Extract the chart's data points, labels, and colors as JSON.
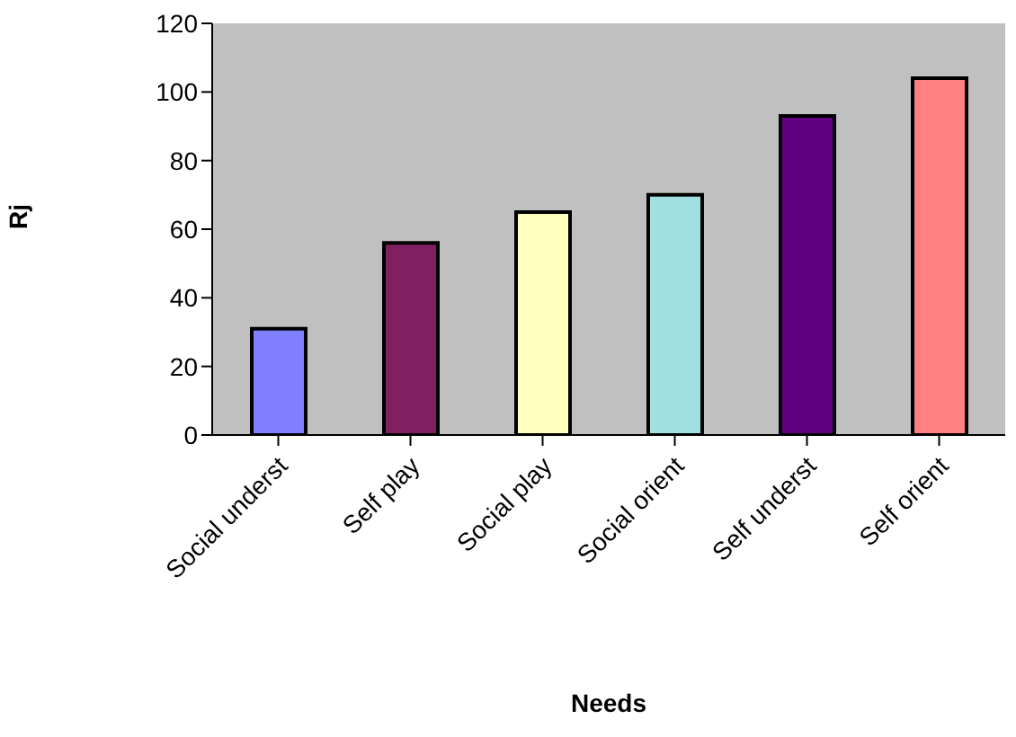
{
  "chart_data": {
    "type": "bar",
    "xlabel": "Needs",
    "ylabel": "Rj",
    "categories": [
      "Social underst",
      "Self play",
      "Social play",
      "Social orient",
      "Self underst",
      "Self orient"
    ],
    "values": [
      31,
      56,
      65,
      70,
      93,
      104
    ],
    "colors": [
      "#8080ff",
      "#802060",
      "#ffffc0",
      "#a0e0e0",
      "#600080",
      "#ff8080"
    ],
    "ylim": [
      0,
      120
    ],
    "yticks": [
      0,
      20,
      40,
      60,
      80,
      100,
      120
    ],
    "grid": false,
    "legend": false
  }
}
